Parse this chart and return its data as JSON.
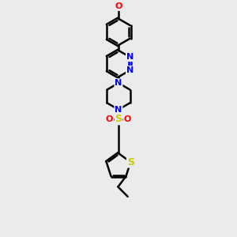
{
  "background_color": "#ebebeb",
  "bond_color": "#000000",
  "bond_width": 1.8,
  "atom_colors": {
    "N": "#0000ff",
    "O": "#ff0000",
    "S": "#cccc00",
    "C": "#000000"
  },
  "figsize": [
    3.0,
    3.0
  ],
  "dpi": 100,
  "xlim": [
    -2.5,
    2.5
  ],
  "ylim": [
    -5.5,
    7.5
  ]
}
